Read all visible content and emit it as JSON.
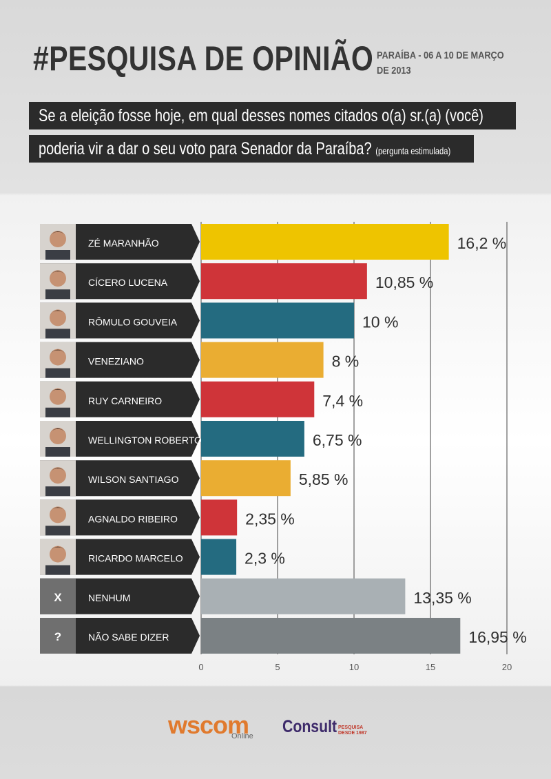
{
  "header": {
    "title": "#PESQUISA DE OPINIÃO",
    "subtitle_line1": "PARAÍBA - 06 A 10 DE MARÇO",
    "subtitle_line2": "DE 2013",
    "question_line1": "Se a eleição fosse hoje, em qual desses nomes citados o(a) sr.(a) (você)",
    "question_line2": "poderia vir a dar o seu voto para Senador da Paraíba?",
    "question_note": "(pergunta estimulada)"
  },
  "chart_data": {
    "type": "bar",
    "orientation": "horizontal",
    "categories": [
      "ZÉ MARANHÃO",
      "CÍCERO LUCENA",
      "RÔMULO GOUVEIA",
      "VENEZIANO",
      "RUY CARNEIRO",
      "WELLINGTON ROBERTO",
      "WILSON SANTIAGO",
      "AGNALDO RIBEIRO",
      "RICARDO MARCELO",
      "NENHUM",
      "NÃO SABE DIZER"
    ],
    "values": [
      16.2,
      10.85,
      10,
      8,
      7.4,
      6.75,
      5.85,
      2.35,
      2.3,
      13.35,
      16.95
    ],
    "value_labels": [
      "16,2 %",
      "10,85 %",
      "10 %",
      "8 %",
      "7,4 %",
      "6,75 %",
      "5,85 %",
      "2,35 %",
      "2,3 %",
      "13,35 %",
      "16,95 %"
    ],
    "colors": [
      "#eec400",
      "#cf3439",
      "#246b80",
      "#eaad32",
      "#cf3439",
      "#246b80",
      "#eaad32",
      "#cf3439",
      "#246b80",
      "#a9b0b4",
      "#7b8184"
    ],
    "avatars": [
      "photo",
      "photo",
      "photo",
      "photo",
      "photo",
      "photo",
      "photo",
      "photo",
      "photo",
      "X",
      "?"
    ],
    "x_ticks": [
      "0",
      "5",
      "10",
      "15",
      "20"
    ],
    "xlim": [
      0,
      20
    ],
    "grid": true
  },
  "footer": {
    "logo1": "wscom",
    "logo1_sub": "Online",
    "logo2": "Consult",
    "logo2_sub1": "PESQUISA",
    "logo2_sub2": "DESDE 1987"
  }
}
